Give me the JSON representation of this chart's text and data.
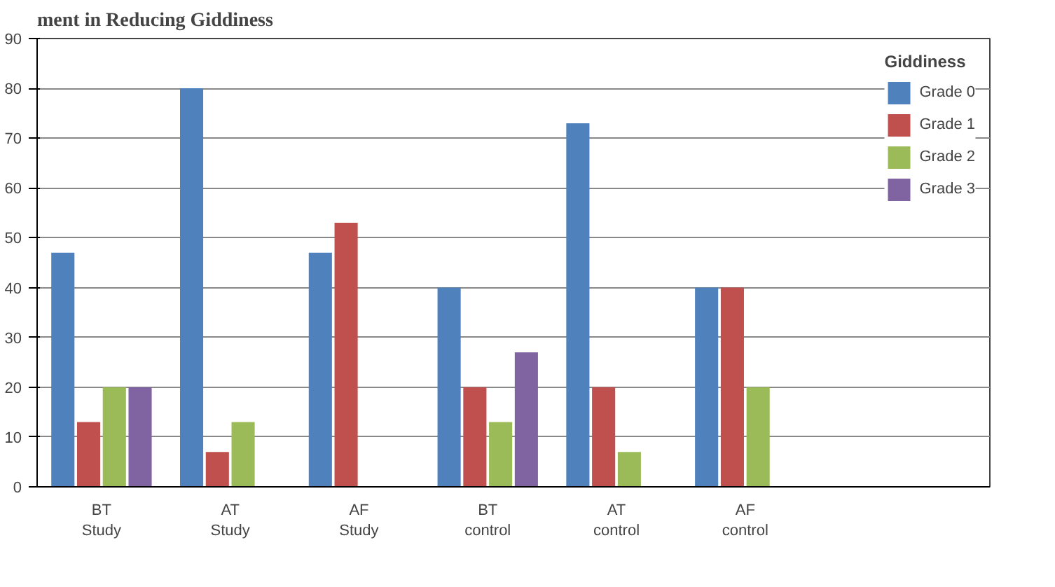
{
  "chart_data": {
    "type": "bar",
    "title": "ment in Reducing Giddiness",
    "legend_title": "Giddiness",
    "categories": [
      "BT\nStudy",
      "AT\nStudy",
      "AF\nStudy",
      "BT\ncontrol",
      "AT\ncontrol",
      "AF\ncontrol"
    ],
    "series": [
      {
        "name": "Grade 0",
        "color": "#4f81bd",
        "values": [
          47,
          80,
          47,
          40,
          73,
          40
        ]
      },
      {
        "name": "Grade 1",
        "color": "#c0504d",
        "values": [
          13,
          7,
          53,
          20,
          20,
          40
        ]
      },
      {
        "name": "Grade 2",
        "color": "#9bbb59",
        "values": [
          20,
          13,
          null,
          13,
          7,
          20
        ]
      },
      {
        "name": "Grade 3",
        "color": "#8064a2",
        "values": [
          20,
          null,
          null,
          27,
          null,
          null
        ]
      }
    ],
    "ylim": [
      0,
      90
    ],
    "yticks": [
      0,
      10,
      20,
      30,
      40,
      50,
      60,
      70,
      80,
      90
    ],
    "grid": "y",
    "legend": "right"
  }
}
